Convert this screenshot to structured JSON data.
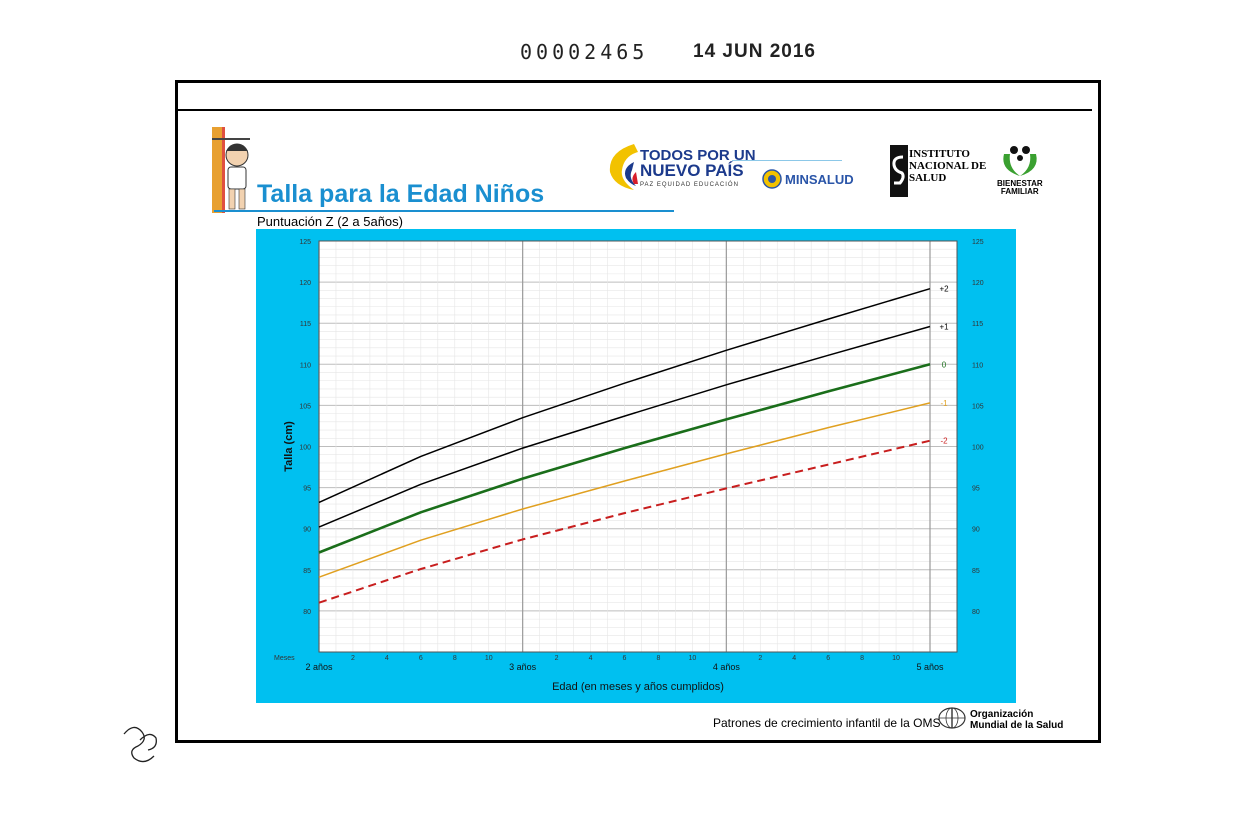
{
  "stamp": {
    "number": "00002465",
    "date": "14 JUN 2016"
  },
  "header": {
    "title": "Talla para la Edad Niños",
    "subtitle": "Puntuación Z (2 a 5años)"
  },
  "logos": {
    "todos_line1": "TODOS POR UN",
    "todos_line2": "NUEVO PAÍS",
    "todos_line3": "PAZ EQUIDAD EDUCACIÓN",
    "minsalud": "MINSALUD",
    "ins_line1": "INSTITUTO",
    "ins_line2": "NACIONAL DE",
    "ins_line3": "SALUD",
    "bienestar_line1": "BIENESTAR",
    "bienestar_line2": "FAMILIAR",
    "who_line1": "Organización",
    "who_line2": "Mundial de la Salud"
  },
  "footer": {
    "text": "Patrones de crecimiento infantil de la OMS"
  },
  "colors": {
    "chart_bg": "#00c0f0",
    "z_plus2": "#000000",
    "z_plus1": "#000000",
    "z_0": "#1a6e1a",
    "z_minus1": "#e0a020",
    "z_minus2": "#c81e1e",
    "title_blue": "#1a8fd0"
  },
  "chart_data": {
    "type": "line",
    "title": "Talla para la Edad Niños",
    "subtitle": "Puntuación Z (2 a 5años)",
    "xlabel": "Edad (en meses y años cumplidos)",
    "ylabel": "Talla (cm)",
    "x_unit_label": "Meses",
    "xlim": [
      24,
      60
    ],
    "ylim": [
      75,
      125
    ],
    "yticks": [
      80,
      85,
      90,
      95,
      100,
      105,
      110,
      115,
      120,
      125
    ],
    "x_major_ticks": [
      {
        "month": 24,
        "label": "2 años"
      },
      {
        "month": 36,
        "label": "3 años"
      },
      {
        "month": 48,
        "label": "4 años"
      },
      {
        "month": 60,
        "label": "5 años"
      }
    ],
    "x_minor_ticks": [
      {
        "month": 26,
        "label": "2"
      },
      {
        "month": 28,
        "label": "4"
      },
      {
        "month": 30,
        "label": "6"
      },
      {
        "month": 32,
        "label": "8"
      },
      {
        "month": 34,
        "label": "10"
      },
      {
        "month": 38,
        "label": "2"
      },
      {
        "month": 40,
        "label": "4"
      },
      {
        "month": 42,
        "label": "6"
      },
      {
        "month": 44,
        "label": "8"
      },
      {
        "month": 46,
        "label": "10"
      },
      {
        "month": 50,
        "label": "2"
      },
      {
        "month": 52,
        "label": "4"
      },
      {
        "month": 54,
        "label": "6"
      },
      {
        "month": 56,
        "label": "8"
      },
      {
        "month": 58,
        "label": "10"
      }
    ],
    "grid": true,
    "x": [
      24,
      30,
      36,
      42,
      48,
      54,
      60
    ],
    "series": [
      {
        "name": "+2",
        "style": "solid",
        "values": [
          93.2,
          98.8,
          103.5,
          107.7,
          111.7,
          115.5,
          119.2
        ]
      },
      {
        "name": "+1",
        "style": "solid",
        "values": [
          90.2,
          95.4,
          99.8,
          103.7,
          107.5,
          111.1,
          114.6
        ]
      },
      {
        "name": "0",
        "style": "solid",
        "values": [
          87.1,
          92.0,
          96.1,
          99.8,
          103.3,
          106.7,
          110.0
        ]
      },
      {
        "name": "-1",
        "style": "solid",
        "values": [
          84.1,
          88.6,
          92.4,
          95.8,
          99.1,
          102.3,
          105.3
        ]
      },
      {
        "name": "-2",
        "style": "dashed",
        "values": [
          81.0,
          85.1,
          88.7,
          91.9,
          94.9,
          97.8,
          100.7
        ]
      }
    ]
  }
}
